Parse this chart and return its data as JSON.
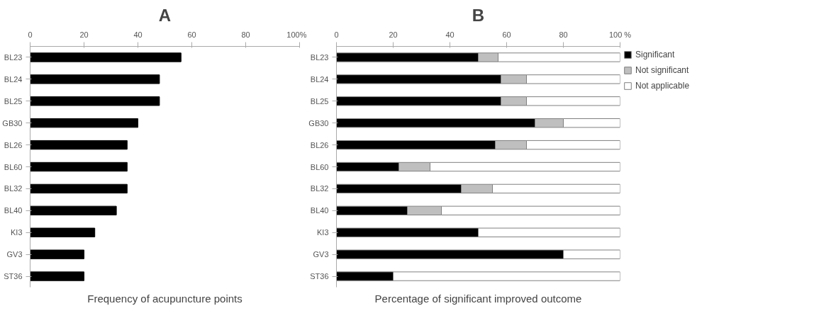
{
  "chart_data": [
    {
      "type": "bar",
      "orientation": "horizontal",
      "title": "A",
      "xlabel": "Frequency of acupuncture points",
      "categories": [
        "BL23",
        "BL24",
        "BL25",
        "GB30",
        "BL26",
        "BL60",
        "BL32",
        "BL40",
        "KI3",
        "GV3",
        "ST36"
      ],
      "values": [
        56,
        48,
        48,
        40,
        36,
        36,
        36,
        32,
        24,
        20,
        20
      ],
      "color": "#000000",
      "xlim": [
        0,
        100
      ],
      "xticks": [
        0,
        20,
        40,
        60,
        80,
        {
          "value": 100,
          "label": "100%"
        }
      ],
      "grid": false,
      "legend": false
    },
    {
      "type": "bar",
      "orientation": "horizontal",
      "stacked": true,
      "title": "B",
      "xlabel": "Percentage of significant improved outcome",
      "categories": [
        "BL23",
        "BL24",
        "BL25",
        "GB30",
        "BL26",
        "BL60",
        "BL32",
        "BL40",
        "KI3",
        "GV3",
        "ST36"
      ],
      "series": [
        {
          "name": "Significant",
          "color": "#000000",
          "values": [
            50,
            58,
            58,
            70,
            56,
            22,
            44,
            25,
            50,
            80,
            20
          ]
        },
        {
          "name": "Not significant",
          "color": "#bfbfbf",
          "values": [
            7,
            9,
            9,
            10,
            11,
            11,
            11,
            12,
            null,
            null,
            null
          ]
        },
        {
          "name": "Not applicable",
          "color": "#ffffff",
          "values": [
            43,
            33,
            33,
            20,
            33,
            67,
            45,
            63,
            50,
            20,
            80
          ]
        }
      ],
      "xlim": [
        0,
        100
      ],
      "xticks": [
        0,
        20,
        40,
        60,
        80,
        {
          "value": 100,
          "label": "100 %"
        }
      ],
      "grid": false,
      "legend": "right"
    }
  ]
}
